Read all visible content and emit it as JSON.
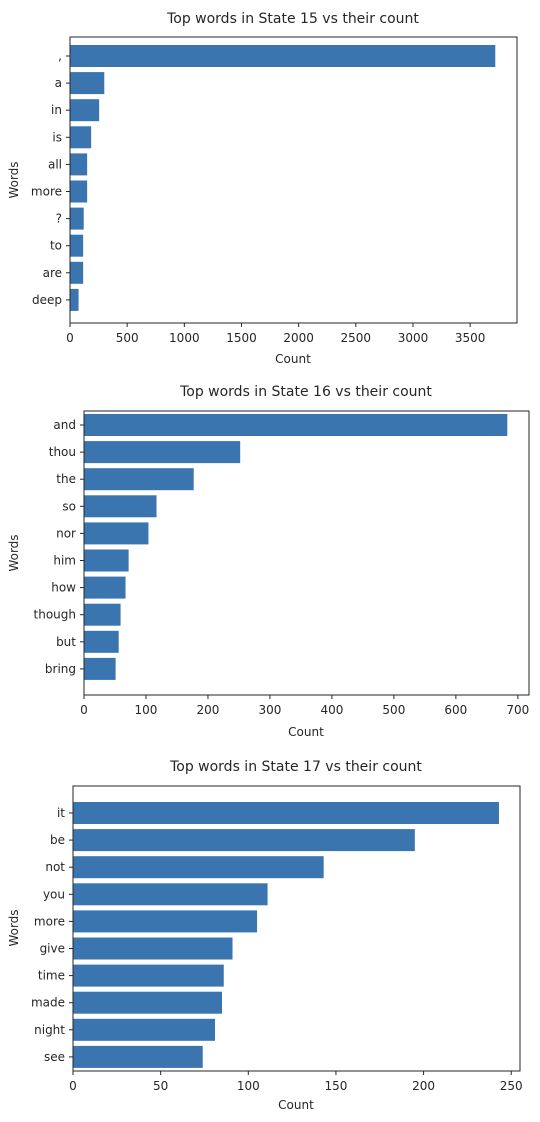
{
  "chart_data": [
    {
      "type": "bar",
      "orientation": "horizontal",
      "title": "Top words in State 15 vs their count",
      "xlabel": "Count",
      "ylabel": "Words",
      "categories": [
        ",",
        "a",
        "in",
        "is",
        "all",
        "more",
        "?",
        "to",
        "are",
        "deep"
      ],
      "values": [
        3720,
        300,
        255,
        185,
        150,
        150,
        120,
        115,
        115,
        75
      ],
      "xticks": [
        0,
        500,
        1000,
        1500,
        2000,
        2500,
        3000,
        3500
      ],
      "xlim": [
        0,
        3910
      ],
      "grid": false,
      "bar_color": "#3a75b0"
    },
    {
      "type": "bar",
      "orientation": "horizontal",
      "title": "Top words in State 16 vs their count",
      "xlabel": "Count",
      "ylabel": "Words",
      "categories": [
        "and",
        "thou",
        "the",
        "so",
        "nor",
        "him",
        "how",
        "though",
        "but",
        "bring"
      ],
      "values": [
        683,
        252,
        177,
        117,
        104,
        72,
        67,
        59,
        56,
        51
      ],
      "xticks": [
        0,
        100,
        200,
        300,
        400,
        500,
        600,
        700
      ],
      "xlim": [
        0,
        718
      ],
      "grid": false,
      "bar_color": "#3a75b0"
    },
    {
      "type": "bar",
      "orientation": "horizontal",
      "title": "Top words in State 17 vs their count",
      "xlabel": "Count",
      "ylabel": "Words",
      "categories": [
        "it",
        "be",
        "not",
        "you",
        "more",
        "give",
        "time",
        "made",
        "night",
        "see"
      ],
      "values": [
        243,
        195,
        143,
        111,
        105,
        91,
        86,
        85,
        81,
        74
      ],
      "xticks": [
        0,
        50,
        100,
        150,
        200,
        250
      ],
      "xlim": [
        0,
        255
      ],
      "grid": false,
      "bar_color": "#3a75b0"
    }
  ]
}
